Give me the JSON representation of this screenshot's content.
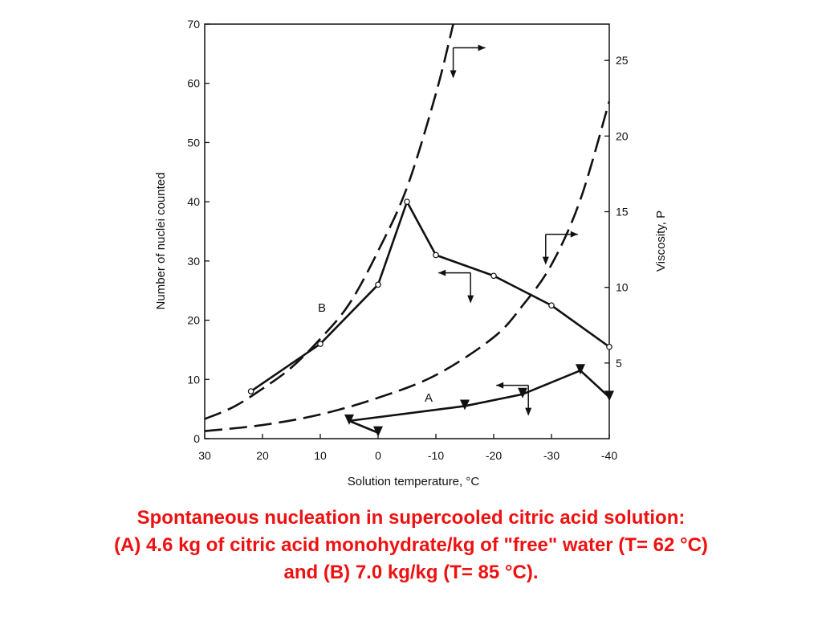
{
  "chart_data": {
    "type": "line",
    "xlabel": "Solution temperature, °C",
    "ylabel": "Number of nuclei counted",
    "y2label": "Viscosity, P",
    "x_ticks": [
      30,
      20,
      10,
      0,
      -10,
      -20,
      -30,
      -40
    ],
    "x_tick_labels": [
      "30",
      "20",
      "10",
      "0",
      "-10",
      "-20",
      "-30",
      "-40"
    ],
    "xlim": [
      30,
      -40
    ],
    "y_ticks": [
      0,
      10,
      20,
      30,
      40,
      50,
      60,
      70
    ],
    "y_tick_labels": [
      "0",
      "10",
      "20",
      "30",
      "40",
      "50",
      "60",
      "70"
    ],
    "ylim": [
      0,
      70
    ],
    "y2_ticks": [
      5,
      10,
      15,
      20,
      25
    ],
    "y2_tick_labels": [
      "5",
      "10",
      "15",
      "20",
      "25"
    ],
    "y2lim": [
      0,
      27.4
    ],
    "grid": false,
    "series": [
      {
        "name": "B",
        "axis": "left",
        "style": "solid",
        "marker": "circle",
        "x": [
          22,
          10,
          0,
          -5,
          -10,
          -20,
          -30,
          -40
        ],
        "y": [
          8,
          16,
          26,
          40,
          31,
          27.5,
          22.5,
          15.5
        ]
      },
      {
        "name": "A",
        "axis": "left",
        "style": "solid",
        "marker": "triangle-down",
        "x": [
          0,
          5,
          -15,
          -25,
          -35,
          -40
        ],
        "y": [
          1,
          3,
          5.5,
          7.5,
          11.5,
          7
        ]
      },
      {
        "axis": "right",
        "style": "dashed",
        "marker": "none",
        "x": [
          30,
          25,
          20,
          15,
          10,
          5,
          0,
          -5,
          -10,
          -13
        ],
        "y": [
          1.3,
          2.1,
          3.3,
          4.7,
          6.6,
          8.9,
          12.4,
          16.6,
          22.8,
          27.4
        ]
      },
      {
        "axis": "right",
        "style": "dashed",
        "marker": "none",
        "x": [
          30,
          20,
          10,
          0,
          -10,
          -20,
          -25,
          -30,
          -35,
          -40
        ],
        "y": [
          0.5,
          0.9,
          1.6,
          2.7,
          4.2,
          6.7,
          8.8,
          11.5,
          15.8,
          22.3
        ]
      }
    ],
    "axis_arrows": [
      {
        "x": -13,
        "y": 66,
        "points_to": "right-axis"
      },
      {
        "x": -29,
        "y": 34.5,
        "points_to": "right-axis"
      },
      {
        "x": -16,
        "y": 28,
        "points_to": "left-axis"
      },
      {
        "x": -26,
        "y": 9,
        "points_to": "left-axis"
      }
    ]
  },
  "caption": {
    "line1": "Spontaneous nucleation in supercooled citric acid solution:",
    "line2": "(A) 4.6 kg of citric acid monohydrate/kg of \"free\" water (T= 62 °C)",
    "line3": "and (B) 7.0 kg/kg (T= 85 °C)."
  }
}
